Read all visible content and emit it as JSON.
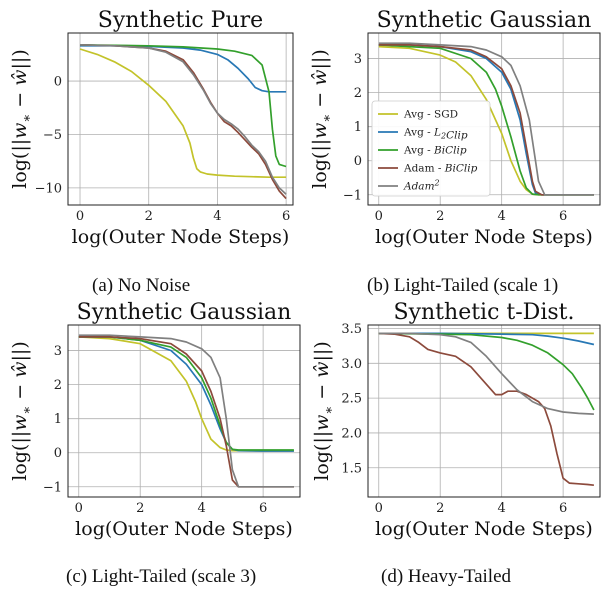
{
  "colors": {
    "Avg - SGD": "#c3c32a",
    "Avg - L2Clip": "#2878b5",
    "Avg - BiClip": "#33a02c",
    "Adam - BiClip": "#8c4a3c",
    "Adam2": "#808080"
  },
  "captions": [
    "(a) No Noise",
    "(b) Light-Tailed (scale 1)",
    "(c) Light-Tailed (scale 3)",
    "(d) Heavy-Tailed"
  ],
  "chart_data": [
    {
      "type": "line",
      "title": "Synthetic Pure",
      "xlabel": "log(Outer Node Steps)",
      "ylabel": "log(||w* − ŵ||)",
      "xlim": [
        -0.35,
        6.2
      ],
      "ylim": [
        -11.6,
        4.5
      ],
      "xticks": [
        0,
        2,
        4,
        6
      ],
      "yticks": [
        -10,
        -5,
        0
      ],
      "grid": true,
      "series": [
        {
          "key": "Avg - SGD",
          "x": [
            0,
            0.5,
            1,
            1.5,
            2,
            2.5,
            3,
            3.2,
            3.3,
            3.4,
            3.5,
            3.7,
            4,
            4.5,
            5,
            5.5,
            6
          ],
          "y": [
            3.0,
            2.5,
            1.8,
            0.9,
            -0.4,
            -1.9,
            -4.2,
            -5.8,
            -7.2,
            -8.2,
            -8.5,
            -8.7,
            -8.8,
            -8.9,
            -8.95,
            -9.0,
            -9.0
          ]
        },
        {
          "key": "Avg - L2Clip",
          "x": [
            0,
            1,
            2,
            3,
            3.5,
            4,
            4.3,
            4.6,
            4.9,
            5.1,
            5.3,
            5.5,
            6
          ],
          "y": [
            3.3,
            3.3,
            3.25,
            3.1,
            2.9,
            2.5,
            2.0,
            1.2,
            0.2,
            -0.6,
            -0.9,
            -1.0,
            -1.0
          ]
        },
        {
          "key": "Avg - BiClip",
          "x": [
            0,
            1,
            2,
            3,
            4,
            4.5,
            5,
            5.3,
            5.5,
            5.6,
            5.7,
            5.8,
            6
          ],
          "y": [
            3.4,
            3.35,
            3.3,
            3.2,
            3.0,
            2.8,
            2.4,
            1.5,
            -1.0,
            -4.5,
            -7.0,
            -7.8,
            -8.0
          ]
        },
        {
          "key": "Adam - BiClip",
          "x": [
            0,
            1,
            2,
            2.5,
            3,
            3.3,
            3.6,
            3.8,
            4,
            4.2,
            4.4,
            4.6,
            4.8,
            5,
            5.2,
            5.4,
            5.6,
            5.8,
            6
          ],
          "y": [
            3.4,
            3.3,
            3.1,
            2.8,
            2.0,
            0.8,
            -0.8,
            -2.0,
            -3.0,
            -3.8,
            -4.2,
            -4.8,
            -5.5,
            -6.2,
            -6.8,
            -7.8,
            -9.2,
            -10.3,
            -11.0
          ]
        },
        {
          "key": "Adam2",
          "x": [
            0,
            1,
            2,
            2.5,
            3,
            3.3,
            3.6,
            3.8,
            4,
            4.2,
            4.4,
            4.6,
            4.8,
            5,
            5.2,
            5.4,
            5.6,
            5.8,
            6
          ],
          "y": [
            3.4,
            3.3,
            3.1,
            2.7,
            1.8,
            0.6,
            -0.9,
            -2.1,
            -3.0,
            -3.6,
            -4.0,
            -4.5,
            -5.2,
            -6.0,
            -6.6,
            -7.5,
            -9.0,
            -10.0,
            -10.6
          ]
        }
      ]
    },
    {
      "type": "line",
      "title": "Synthetic Gaussian",
      "xlabel": "log(Outer Node Steps)",
      "ylabel": "log(||w* − ŵ||)",
      "xlim": [
        -0.35,
        7.2
      ],
      "ylim": [
        -1.3,
        3.75
      ],
      "xticks": [
        0,
        2,
        4,
        6
      ],
      "yticks": [
        -1,
        0,
        1,
        2,
        3
      ],
      "grid": true,
      "legend": "center-left",
      "series": [
        {
          "key": "Avg - SGD",
          "x": [
            0,
            1,
            2,
            2.5,
            3,
            3.5,
            4,
            4.3,
            4.6,
            4.8,
            5,
            5.2,
            6,
            7
          ],
          "y": [
            3.35,
            3.3,
            3.1,
            2.9,
            2.5,
            1.8,
            0.8,
            0.0,
            -0.6,
            -0.85,
            -0.98,
            -1.0,
            -1.0,
            -1.0
          ]
        },
        {
          "key": "Avg - L2Clip",
          "x": [
            0,
            1,
            2,
            3,
            3.5,
            4,
            4.3,
            4.6,
            4.8,
            5,
            5.1,
            5.3,
            6,
            7
          ],
          "y": [
            3.4,
            3.4,
            3.35,
            3.2,
            3.0,
            2.6,
            2.1,
            1.2,
            0.2,
            -0.7,
            -0.95,
            -1.0,
            -1.0,
            -1.0
          ]
        },
        {
          "key": "Avg - BiClip",
          "x": [
            0,
            1,
            2,
            3,
            3.5,
            3.8,
            4,
            4.3,
            4.6,
            4.8,
            5,
            5.2,
            6,
            7
          ],
          "y": [
            3.4,
            3.35,
            3.3,
            3.0,
            2.6,
            2.1,
            1.6,
            0.7,
            -0.3,
            -0.8,
            -0.98,
            -1.0,
            -1.0,
            -1.0
          ]
        },
        {
          "key": "Adam - BiClip",
          "x": [
            0,
            1,
            2,
            3,
            3.5,
            4,
            4.3,
            4.6,
            4.8,
            5,
            5.1,
            5.3,
            6,
            7
          ],
          "y": [
            3.4,
            3.4,
            3.35,
            3.25,
            3.05,
            2.7,
            2.2,
            1.4,
            0.4,
            -0.6,
            -0.9,
            -1.0,
            -1.0,
            -1.0
          ]
        },
        {
          "key": "Adam2",
          "x": [
            0,
            1,
            2,
            3,
            3.5,
            4,
            4.3,
            4.6,
            4.9,
            5.1,
            5.2,
            5.4,
            6,
            7
          ],
          "y": [
            3.45,
            3.45,
            3.4,
            3.35,
            3.25,
            3.05,
            2.8,
            2.2,
            1.2,
            0.0,
            -0.6,
            -1.0,
            -1.0,
            -1.0
          ]
        }
      ]
    },
    {
      "type": "line",
      "title": "Synthetic Gaussian",
      "xlabel": "log(Outer Node Steps)",
      "ylabel": "log(||w* − ŵ||)",
      "xlim": [
        -0.35,
        7.2
      ],
      "ylim": [
        -1.3,
        3.75
      ],
      "xticks": [
        0,
        2,
        4,
        6
      ],
      "yticks": [
        -1,
        0,
        1,
        2,
        3
      ],
      "grid": true,
      "series": [
        {
          "key": "Avg - SGD",
          "x": [
            0,
            1,
            2,
            3,
            3.5,
            3.8,
            4,
            4.3,
            4.6,
            4.8,
            5,
            6,
            7
          ],
          "y": [
            3.4,
            3.35,
            3.2,
            2.7,
            2.1,
            1.5,
            1.0,
            0.4,
            0.15,
            0.08,
            0.06,
            0.05,
            0.05
          ]
        },
        {
          "key": "Avg - L2Clip",
          "x": [
            0,
            1,
            2,
            3,
            3.5,
            4,
            4.3,
            4.6,
            4.8,
            5,
            5.2,
            6,
            7
          ],
          "y": [
            3.4,
            3.4,
            3.3,
            3.0,
            2.6,
            2.0,
            1.4,
            0.7,
            0.3,
            0.1,
            0.06,
            0.05,
            0.05
          ]
        },
        {
          "key": "Avg - BiClip",
          "x": [
            0,
            1,
            2,
            3,
            3.5,
            4,
            4.3,
            4.6,
            4.8,
            5,
            5.2,
            6,
            7
          ],
          "y": [
            3.4,
            3.4,
            3.3,
            3.1,
            2.8,
            2.2,
            1.6,
            0.8,
            0.3,
            0.1,
            0.08,
            0.08,
            0.08
          ]
        },
        {
          "key": "Adam - BiClip",
          "x": [
            0,
            1,
            2,
            3,
            3.5,
            4,
            4.3,
            4.6,
            4.8,
            5,
            5.2,
            6,
            7
          ],
          "y": [
            3.4,
            3.4,
            3.35,
            3.2,
            2.9,
            2.4,
            1.8,
            1.0,
            0.2,
            -0.8,
            -1.0,
            -1.0,
            -1.0
          ]
        },
        {
          "key": "Adam2",
          "x": [
            0,
            1,
            2,
            3,
            3.5,
            4,
            4.3,
            4.6,
            4.8,
            5,
            5.2,
            6,
            7
          ],
          "y": [
            3.45,
            3.45,
            3.4,
            3.35,
            3.25,
            3.05,
            2.8,
            2.2,
            1.0,
            -0.5,
            -1.0,
            -1.0,
            -1.0
          ]
        }
      ]
    },
    {
      "type": "line",
      "title": "Synthetic t-Dist.",
      "xlabel": "log(Outer Node Steps)",
      "ylabel": "log(||w* − ŵ||)",
      "xlim": [
        -0.35,
        7.2
      ],
      "ylim": [
        1.08,
        3.55
      ],
      "xticks": [
        0,
        2,
        4,
        6
      ],
      "yticks": [
        1.5,
        2.0,
        2.5,
        3.0,
        3.5
      ],
      "grid": true,
      "series": [
        {
          "key": "Avg - SGD",
          "x": [
            0,
            2,
            4,
            5,
            6,
            7
          ],
          "y": [
            3.43,
            3.43,
            3.43,
            3.43,
            3.43,
            3.43
          ]
        },
        {
          "key": "Avg - L2Clip",
          "x": [
            0,
            2,
            4,
            5,
            5.5,
            6,
            6.5,
            7
          ],
          "y": [
            3.43,
            3.43,
            3.42,
            3.41,
            3.39,
            3.36,
            3.32,
            3.27
          ]
        },
        {
          "key": "Avg - BiClip",
          "x": [
            0,
            2,
            3,
            4,
            4.5,
            5,
            5.5,
            6,
            6.3,
            6.6,
            6.8,
            7
          ],
          "y": [
            3.43,
            3.42,
            3.41,
            3.37,
            3.33,
            3.26,
            3.15,
            2.98,
            2.85,
            2.65,
            2.5,
            2.33
          ]
        },
        {
          "key": "Adam - BiClip",
          "x": [
            0,
            0.5,
            1,
            1.3,
            1.6,
            2,
            2.5,
            3,
            3.5,
            3.8,
            4,
            4.2,
            4.5,
            4.8,
            5,
            5.2,
            5.4,
            5.6,
            5.8,
            6,
            6.2,
            6.5,
            6.8,
            7
          ],
          "y": [
            3.43,
            3.42,
            3.38,
            3.3,
            3.2,
            3.15,
            3.1,
            2.95,
            2.7,
            2.55,
            2.55,
            2.6,
            2.6,
            2.55,
            2.5,
            2.45,
            2.35,
            2.1,
            1.7,
            1.35,
            1.28,
            1.27,
            1.26,
            1.25
          ]
        },
        {
          "key": "Adam2",
          "x": [
            0,
            1,
            2,
            2.5,
            3,
            3.5,
            4,
            4.5,
            5,
            5.5,
            6,
            6.5,
            7
          ],
          "y": [
            3.43,
            3.43,
            3.41,
            3.38,
            3.3,
            3.1,
            2.85,
            2.62,
            2.45,
            2.35,
            2.3,
            2.28,
            2.27
          ]
        }
      ]
    }
  ]
}
